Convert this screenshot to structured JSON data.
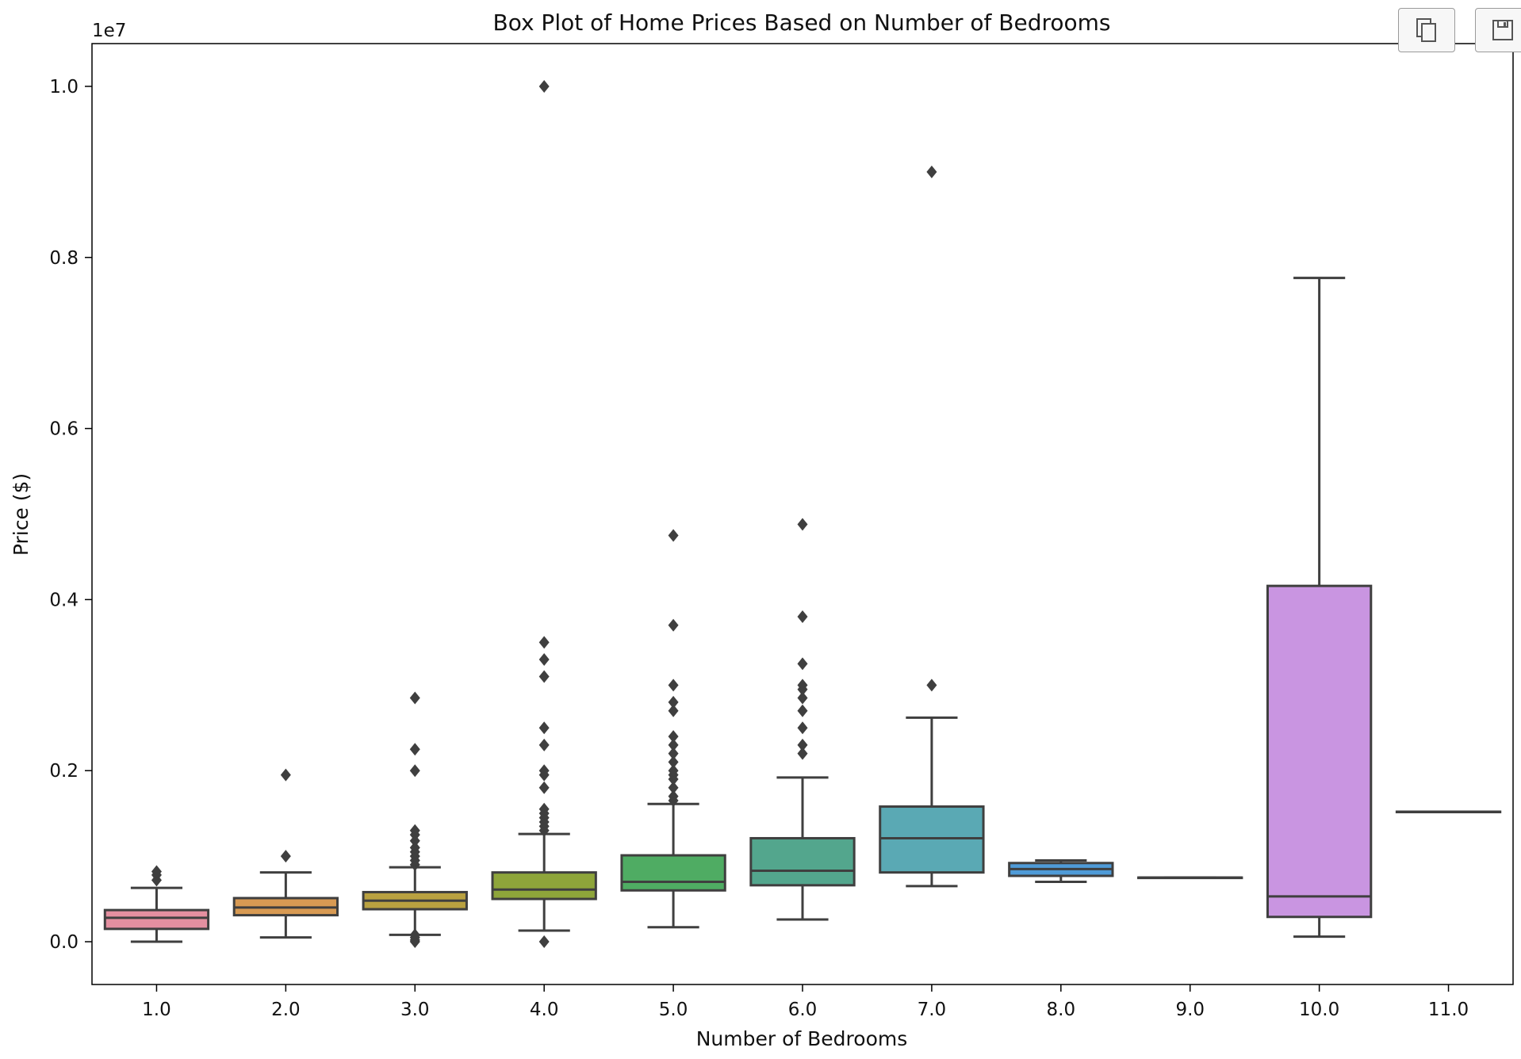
{
  "toolbar": {
    "buttons": [
      {
        "name": "copy",
        "icon": "copy-icon"
      },
      {
        "name": "save",
        "icon": "save-icon"
      }
    ]
  },
  "chart_data": {
    "type": "box",
    "title": "Box Plot of Home Prices Based on Number of Bedrooms",
    "xlabel": "Number of Bedrooms",
    "ylabel": "Price ($)",
    "y_offset_label": "1e7",
    "y_multiplier": 10000000,
    "ylim": [
      -0.05,
      1.05
    ],
    "yticks": [
      0.0,
      0.2,
      0.4,
      0.6,
      0.8,
      1.0
    ],
    "ytick_labels": [
      "0.0",
      "0.2",
      "0.4",
      "0.6",
      "0.8",
      "1.0"
    ],
    "categories": [
      "1.0",
      "2.0",
      "3.0",
      "4.0",
      "5.0",
      "6.0",
      "7.0",
      "8.0",
      "9.0",
      "10.0",
      "11.0"
    ],
    "grid": false,
    "legend": "none",
    "boxes": [
      {
        "category": "1.0",
        "color": "#e48fa0",
        "whisker_low": 0.0,
        "q1": 0.015,
        "median": 0.028,
        "q3": 0.037,
        "whisker_high": 0.063,
        "outliers": [
          0.072,
          0.078,
          0.082
        ]
      },
      {
        "category": "2.0",
        "color": "#d89a53",
        "whisker_low": 0.005,
        "q1": 0.031,
        "median": 0.04,
        "q3": 0.051,
        "whisker_high": 0.081,
        "outliers": [
          0.1,
          0.195
        ]
      },
      {
        "category": "3.0",
        "color": "#b9a140",
        "whisker_low": 0.008,
        "q1": 0.038,
        "median": 0.048,
        "q3": 0.058,
        "whisker_high": 0.087,
        "outliers": [
          0.0,
          0.002,
          0.005,
          0.008,
          0.09,
          0.095,
          0.1,
          0.105,
          0.11,
          0.118,
          0.125,
          0.13,
          0.2,
          0.225,
          0.285
        ]
      },
      {
        "category": "4.0",
        "color": "#8ea53a",
        "whisker_low": 0.013,
        "q1": 0.05,
        "median": 0.061,
        "q3": 0.081,
        "whisker_high": 0.126,
        "outliers": [
          0.0,
          0.13,
          0.135,
          0.14,
          0.145,
          0.15,
          0.155,
          0.18,
          0.195,
          0.2,
          0.23,
          0.25,
          0.31,
          0.33,
          0.35,
          1.0
        ]
      },
      {
        "category": "5.0",
        "color": "#4fac63",
        "whisker_low": 0.017,
        "q1": 0.06,
        "median": 0.07,
        "q3": 0.101,
        "whisker_high": 0.161,
        "outliers": [
          0.165,
          0.17,
          0.18,
          0.19,
          0.195,
          0.2,
          0.21,
          0.22,
          0.23,
          0.24,
          0.27,
          0.28,
          0.3,
          0.37,
          0.475
        ]
      },
      {
        "category": "6.0",
        "color": "#53a68d",
        "whisker_low": 0.026,
        "q1": 0.066,
        "median": 0.083,
        "q3": 0.121,
        "whisker_high": 0.192,
        "outliers": [
          0.22,
          0.23,
          0.25,
          0.27,
          0.285,
          0.295,
          0.3,
          0.325,
          0.38,
          0.488
        ]
      },
      {
        "category": "7.0",
        "color": "#5aa9b4",
        "whisker_low": 0.065,
        "q1": 0.081,
        "median": 0.121,
        "q3": 0.158,
        "whisker_high": 0.262,
        "outliers": [
          0.3,
          0.9
        ]
      },
      {
        "category": "8.0",
        "color": "#4f9bd8",
        "whisker_low": 0.07,
        "q1": 0.077,
        "median": 0.085,
        "q3": 0.092,
        "whisker_high": 0.095,
        "outliers": []
      },
      {
        "category": "9.0",
        "color": "#8d94e8",
        "whisker_low": 0.075,
        "q1": 0.075,
        "median": 0.075,
        "q3": 0.075,
        "whisker_high": 0.075,
        "outliers": []
      },
      {
        "category": "10.0",
        "color": "#c995e1",
        "whisker_low": 0.006,
        "q1": 0.029,
        "median": 0.053,
        "q3": 0.416,
        "whisker_high": 0.776,
        "outliers": []
      },
      {
        "category": "11.0",
        "color": "#e48cc2",
        "whisker_low": 0.152,
        "q1": 0.152,
        "median": 0.152,
        "q3": 0.152,
        "whisker_high": 0.152,
        "outliers": []
      }
    ]
  }
}
